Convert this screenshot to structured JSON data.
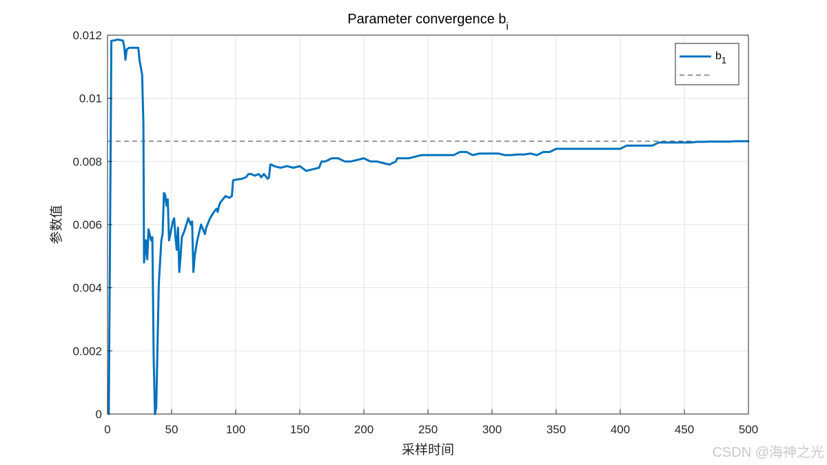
{
  "chart_data": {
    "type": "line",
    "title": {
      "main": "Parameter convergence b",
      "sub": "i"
    },
    "xlabel": "采样时间",
    "ylabel": "参数值",
    "xlim": [
      0,
      500
    ],
    "ylim": [
      0,
      0.012
    ],
    "xticks": [
      0,
      50,
      100,
      150,
      200,
      250,
      300,
      350,
      400,
      450,
      500
    ],
    "yticks": [
      0,
      0.002,
      0.004,
      0.006,
      0.008,
      0.01,
      0.012
    ],
    "ytick_labels": [
      "0",
      "0.002",
      "0.004",
      "0.006",
      "0.008",
      "0.01",
      "0.012"
    ],
    "grid": true,
    "legend_position": "top-right",
    "series": [
      {
        "name": "b",
        "name_sub": "1",
        "color": "#0072BD",
        "style": "solid",
        "x": [
          1,
          2,
          3,
          5,
          8,
          12,
          13,
          14,
          15,
          17,
          20,
          24,
          25,
          27,
          28,
          28.5,
          30,
          31,
          32,
          34,
          35,
          36,
          37,
          38,
          40,
          42,
          43,
          44,
          45,
          46,
          47,
          48,
          50,
          51,
          52,
          53,
          54,
          55,
          56,
          57,
          58,
          60,
          63,
          65,
          66,
          67,
          68,
          70,
          73,
          75,
          76,
          77,
          78,
          80,
          83,
          85,
          86,
          87,
          88,
          90,
          92,
          95,
          97,
          98,
          100,
          105,
          108,
          110,
          112,
          115,
          118,
          120,
          122,
          125,
          126,
          127,
          128,
          130,
          135,
          140,
          145,
          150,
          155,
          160,
          165,
          166,
          167,
          170,
          175,
          180,
          185,
          190,
          195,
          200,
          205,
          210,
          215,
          220,
          225,
          226,
          230,
          235,
          240,
          245,
          250,
          255,
          260,
          265,
          270,
          275,
          280,
          285,
          290,
          295,
          300,
          305,
          310,
          315,
          320,
          325,
          330,
          335,
          340,
          345,
          350,
          355,
          360,
          365,
          370,
          375,
          380,
          385,
          390,
          395,
          400,
          405,
          410,
          415,
          420,
          425,
          430,
          435,
          440,
          445,
          450,
          455,
          460,
          465,
          470,
          475,
          480,
          485,
          490,
          495,
          500
        ],
        "y": [
          0,
          0.0058,
          0.01182,
          0.01183,
          0.01186,
          0.01183,
          0.01165,
          0.01122,
          0.01155,
          0.0116,
          0.0116,
          0.0116,
          0.0112,
          0.01075,
          0.0092,
          0.0048,
          0.0055,
          0.0049,
          0.00585,
          0.0055,
          0.0056,
          0.0018,
          0,
          0.0002,
          0.0041,
          0.0055,
          0.0057,
          0.007,
          0.00695,
          0.0066,
          0.0068,
          0.0055,
          0.0059,
          0.0061,
          0.0062,
          0.0056,
          0.0052,
          0.0059,
          0.0045,
          0.005,
          0.0056,
          0.0058,
          0.0062,
          0.006,
          0.0061,
          0.0045,
          0.005,
          0.0055,
          0.006,
          0.0058,
          0.0057,
          0.0059,
          0.006,
          0.0062,
          0.0064,
          0.0065,
          0.0064,
          0.0066,
          0.0067,
          0.0068,
          0.0069,
          0.00685,
          0.0069,
          0.0074,
          0.00742,
          0.00745,
          0.0075,
          0.0076,
          0.0076,
          0.00755,
          0.0076,
          0.0075,
          0.0076,
          0.00745,
          0.0075,
          0.0079,
          0.0079,
          0.00785,
          0.0078,
          0.00785,
          0.0078,
          0.00785,
          0.0077,
          0.00775,
          0.0078,
          0.0079,
          0.008,
          0.008,
          0.0081,
          0.0081,
          0.008,
          0.008,
          0.00805,
          0.0081,
          0.008,
          0.008,
          0.00795,
          0.0079,
          0.008,
          0.0081,
          0.0081,
          0.0081,
          0.00815,
          0.0082,
          0.0082,
          0.0082,
          0.0082,
          0.0082,
          0.0082,
          0.0083,
          0.0083,
          0.0082,
          0.00825,
          0.00825,
          0.00825,
          0.00825,
          0.0082,
          0.0082,
          0.00822,
          0.00822,
          0.00825,
          0.0082,
          0.0083,
          0.0083,
          0.0084,
          0.0084,
          0.0084,
          0.0084,
          0.0084,
          0.0084,
          0.0084,
          0.0084,
          0.0084,
          0.0084,
          0.0084,
          0.0085,
          0.0085,
          0.0085,
          0.0085,
          0.0085,
          0.0086,
          0.0086,
          0.0086,
          0.0086,
          0.0086,
          0.0086,
          0.00862,
          0.00862,
          0.00863,
          0.00863,
          0.00863,
          0.00863,
          0.00864,
          0.00864,
          0.00864
        ]
      },
      {
        "name": "",
        "color": "#333333",
        "style": "dashed",
        "x": [
          0,
          500
        ],
        "y": [
          0.00864,
          0.00864
        ]
      }
    ]
  },
  "watermark": "CSDN @海神之光"
}
